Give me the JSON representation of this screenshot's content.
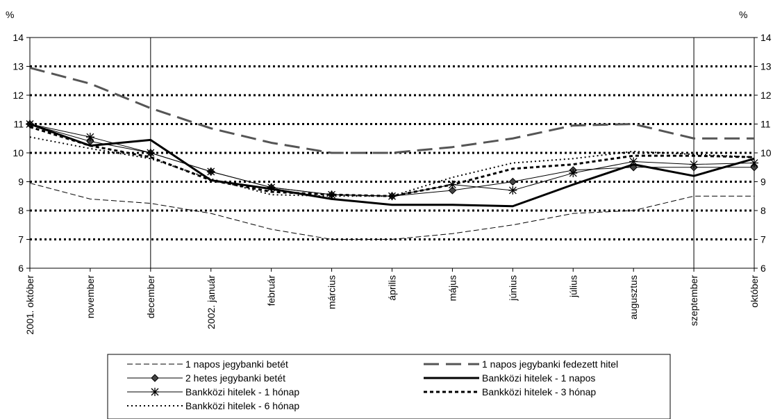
{
  "chart_data": {
    "type": "line",
    "left_unit": "%",
    "right_unit": "%",
    "ylim": [
      6,
      14
    ],
    "yticks": [
      "6",
      "7",
      "8",
      "9",
      "10",
      "11",
      "12",
      "13",
      "14"
    ],
    "categories": [
      "2001. október",
      "november",
      "december",
      "2002. január",
      "február",
      "március",
      "április",
      "május",
      "június",
      "július",
      "augusztus",
      "szeptember",
      "október"
    ],
    "grid": "dotted horizontal gridlines; solid vertical lines at december and szeptember",
    "legend_position": "bottom",
    "series": [
      {
        "name": "1 napos jegybanki betét",
        "style": "thin-dash",
        "color": "#000000",
        "values": [
          8.95,
          8.4,
          8.25,
          7.9,
          7.35,
          7.0,
          7.0,
          7.2,
          7.5,
          7.9,
          8.0,
          8.5,
          8.5
        ]
      },
      {
        "name": "1 napos jegybanki fedezett hitel",
        "style": "thick-dash",
        "color": "#555555",
        "values": [
          12.95,
          12.4,
          11.55,
          10.85,
          10.35,
          10.0,
          10.0,
          10.2,
          10.5,
          10.95,
          11.0,
          10.5,
          10.5
        ]
      },
      {
        "name": "2 hetes jegybanki betét",
        "style": "thin-solid-diamond",
        "color": "#000000",
        "values": [
          11.0,
          10.4,
          10.0,
          9.35,
          8.8,
          8.55,
          8.5,
          8.7,
          9.0,
          9.4,
          9.5,
          9.5,
          9.5
        ]
      },
      {
        "name": "Bankközi hitelek - 1 napos",
        "style": "thick-solid",
        "color": "#000000",
        "values": [
          11.0,
          10.25,
          10.45,
          9.05,
          8.75,
          8.4,
          8.2,
          8.2,
          8.15,
          8.9,
          9.6,
          9.2,
          9.8
        ]
      },
      {
        "name": "Bankközi hitelek - 1 hónap",
        "style": "thin-solid-star",
        "color": "#000000",
        "values": [
          11.0,
          10.55,
          10.0,
          9.35,
          8.8,
          8.55,
          8.5,
          8.9,
          8.7,
          9.3,
          9.7,
          9.6,
          9.65
        ]
      },
      {
        "name": "Bankközi hitelek - 3 hónap",
        "style": "bold-dash",
        "color": "#000000",
        "values": [
          10.9,
          10.25,
          9.85,
          9.05,
          8.65,
          8.55,
          8.5,
          8.9,
          9.45,
          9.6,
          9.9,
          9.9,
          9.85
        ]
      },
      {
        "name": "Bankközi hitelek - 6 hónap",
        "style": "dotted",
        "color": "#000000",
        "values": [
          10.55,
          10.15,
          9.8,
          9.1,
          8.55,
          8.5,
          8.5,
          9.15,
          9.65,
          9.8,
          10.05,
          9.95,
          9.85
        ]
      }
    ]
  }
}
